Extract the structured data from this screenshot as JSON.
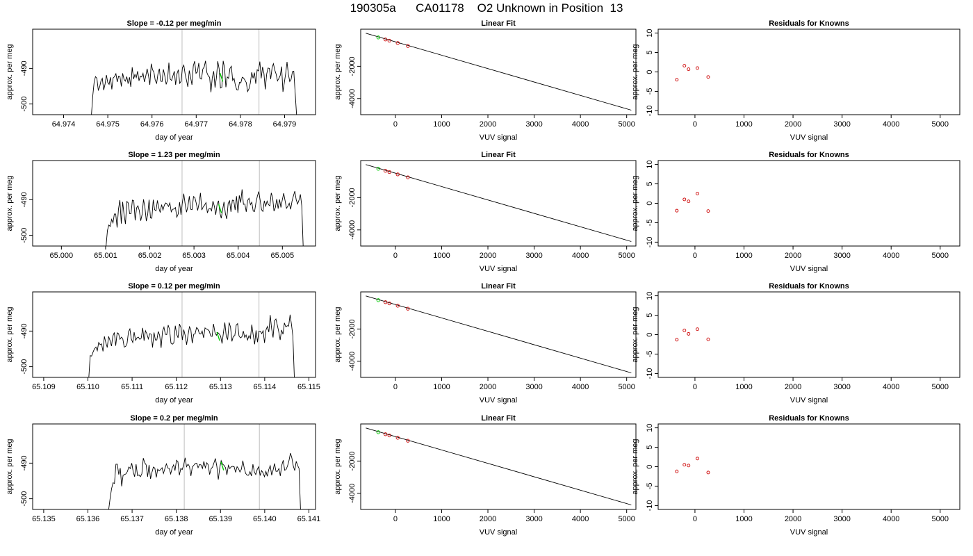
{
  "header": {
    "title": "190305a      CA01178    O2 Unknown in Position  13"
  },
  "colors": {
    "trace": "#000000",
    "highlight": "#00cc00",
    "residual_marker": "#cc0000",
    "vline": "#c8c8c8",
    "frame": "#000000"
  },
  "chart_data": [
    {
      "type": "line",
      "panel": "trace",
      "row": 1,
      "title": "Slope =  -0.12  per meg/min",
      "xlabel": "day of year",
      "ylabel": "approx. per meg",
      "xlim": [
        64.9733,
        64.9797
      ],
      "ylim": [
        -503,
        -479
      ],
      "xticks": [
        "64.974",
        "64.975",
        "64.976",
        "64.977",
        "64.978",
        "64.979"
      ],
      "yticks": [
        "-500",
        "-490"
      ],
      "vlines": [
        64.97668,
        64.97842
      ],
      "highlight": {
        "x": 64.97757,
        "y": -492.5
      },
      "x_start": 64.97463,
      "x_end": 64.97927,
      "y": [
        -503,
        -497.7,
        -493.8,
        -492.3,
        -492.8,
        -496.1,
        -495.3,
        -493.5,
        -492.8,
        -496.1,
        -494.5,
        -491.9,
        -493.9,
        -494.5,
        -492.5,
        -495.9,
        -492.7,
        -492.3,
        -491.5,
        -493.8,
        -492.2,
        -492.3,
        -495.1,
        -491.4,
        -493.1,
        -493.6,
        -492.3,
        -494.3,
        -492.5,
        -495.2,
        -489.7,
        -493.0,
        -491.7,
        -492.6,
        -490.8,
        -493.5,
        -492.2,
        -492.4,
        -491.4,
        -493.8,
        -492.2,
        -490.1,
        -492.1,
        -494.6,
        -488.7,
        -490.4,
        -491.1,
        -493.4,
        -494.2,
        -491.5,
        -490.1,
        -493.6,
        -493.7,
        -490.3,
        -492.1,
        -494.5,
        -493.3,
        -488.4,
        -493.0,
        -493.4,
        -492.1,
        -490.8,
        -494.6,
        -491.5,
        -490.4,
        -494.2,
        -493.6,
        -489.8,
        -489.1,
        -491.6,
        -493.4,
        -495.2,
        -490.6,
        -492.5,
        -494.6,
        -489.3,
        -488.0,
        -491.4,
        -491.0,
        -488.5,
        -492.8,
        -493.0,
        -490.2,
        -489.6,
        -487.9,
        -491.2,
        -492.1,
        -492.5,
        -496.7,
        -492.5,
        -490.8,
        -495.4,
        -492.6,
        -488.0,
        -490.1,
        -495.5,
        -495.3,
        -487.9,
        -489.8,
        -495.3,
        -492.4,
        -492.8,
        -490.0,
        -489.4,
        -493.4,
        -492.8,
        -494.8,
        -496.0,
        -496.1,
        -493.9,
        -494.1,
        -492.5,
        -492.7,
        -493.3,
        -494.0,
        -496.5,
        -495.7,
        -494.1,
        -491.1,
        -492.8,
        -491.2,
        -494.3,
        -490.4,
        -490.7,
        -488.1,
        -492.8,
        -489.6,
        -491.5,
        -495.9,
        -491.6,
        -489.9,
        -490.0,
        -493.0,
        -489.8,
        -488.7,
        -490.5,
        -491.6,
        -493.5,
        -492.8,
        -492.0,
        -489.5,
        -496.6,
        -494.0,
        -491.5,
        -488.2,
        -491.6,
        -493.7,
        -493.1,
        -490.9,
        -490.8,
        -496.9,
        -503
      ]
    },
    {
      "type": "line",
      "panel": "fit",
      "row": 1,
      "title": "Linear Fit",
      "xlabel": "VUV signal",
      "ylabel": "approx. per meg",
      "xlim": [
        -750,
        5200
      ],
      "ylim": [
        -5000,
        300
      ],
      "xticks": [
        "0",
        "1000",
        "2000",
        "3000",
        "4000",
        "5000"
      ],
      "yticks": [
        "-4000",
        "-2000"
      ],
      "line": [
        [
          -640,
          50
        ],
        [
          5100,
          -4720
        ]
      ],
      "points": [
        [
          -370,
          -210,
          "#00cc00"
        ],
        [
          -215,
          -335,
          "#cc0000"
        ],
        [
          -130,
          -410,
          "#cc0000"
        ],
        [
          50,
          -555,
          "#cc0000"
        ],
        [
          270,
          -740,
          "#cc0000"
        ]
      ]
    },
    {
      "type": "scatter",
      "panel": "residuals",
      "row": 1,
      "title": "Residuals for Knowns",
      "xlabel": "VUV signal",
      "ylabel": "approx. per meg",
      "xlim": [
        -750,
        5400
      ],
      "ylim": [
        -11,
        11
      ],
      "xticks": [
        "0",
        "1000",
        "2000",
        "3000",
        "4000",
        "5000"
      ],
      "yticks": [
        "-10",
        "-5",
        "0",
        "5",
        "10"
      ],
      "points": [
        [
          -370,
          -2.0
        ],
        [
          -215,
          1.6
        ],
        [
          -130,
          0.7
        ],
        [
          50,
          1.0
        ],
        [
          270,
          -1.3
        ]
      ]
    },
    {
      "type": "line",
      "panel": "trace",
      "row": 2,
      "title": "Slope =  1.23  per meg/min",
      "xlabel": "day of year",
      "ylabel": "approx. per meg",
      "xlim": [
        64.99935,
        65.00575
      ],
      "ylim": [
        -503,
        -479
      ],
      "xticks": [
        "65.000",
        "65.001",
        "65.002",
        "65.003",
        "65.004",
        "65.005"
      ],
      "yticks": [
        "-500",
        "-490"
      ],
      "vlines": [
        65.00273,
        65.00448
      ],
      "highlight": {
        "x": 65.00359,
        "y": -492.5
      },
      "x_start": 65.00101,
      "x_end": 65.00547,
      "y": [
        -503,
        -498.6,
        -497.1,
        -497.5,
        -495.5,
        -496.5,
        -494.0,
        -494.0,
        -497.8,
        -492.6,
        -490.1,
        -496.7,
        -490.6,
        -494.2,
        -496.8,
        -490.5,
        -490.9,
        -493.9,
        -493.9,
        -490.1,
        -490.3,
        -495.8,
        -492.3,
        -491.7,
        -493.1,
        -495.9,
        -494.1,
        -489.9,
        -492.1,
        -496.0,
        -494.2,
        -490.0,
        -495.1,
        -495.2,
        -490.0,
        -492.8,
        -493.1,
        -490.2,
        -492.3,
        -493.6,
        -491.4,
        -492.9,
        -491.5,
        -490.9,
        -491.2,
        -491.9,
        -490.9,
        -493.4,
        -492.7,
        -492.6,
        -492.2,
        -494.9,
        -494.0,
        -490.7,
        -494.2,
        -490.8,
        -488.3,
        -491.2,
        -493.5,
        -491.8,
        -489.0,
        -492.7,
        -492.8,
        -489.1,
        -489.4,
        -491.0,
        -493.0,
        -491.1,
        -488.1,
        -492.9,
        -492.0,
        -491.5,
        -490.8,
        -493.7,
        -492.6,
        -492.4,
        -493.1,
        -490.4,
        -491.8,
        -494.2,
        -491.3,
        -490.3,
        -493.7,
        -495.2,
        -492.8,
        -490.6,
        -493.9,
        -495.4,
        -491.0,
        -490.3,
        -493.4,
        -490.1,
        -490.2,
        -492.9,
        -489.0,
        -493.7,
        -488.8,
        -490.8,
        -487.1,
        -491.3,
        -491.2,
        -493.4,
        -490.2,
        -489.6,
        -491.4,
        -490.7,
        -493.2,
        -493.3,
        -490.8,
        -489.0,
        -487.7,
        -490.1,
        -492.8,
        -493.3,
        -490.3,
        -491.8,
        -490.4,
        -491.4,
        -491.7,
        -488.1,
        -489.4,
        -493.2,
        -492.2,
        -489.8,
        -492.5,
        -489.9,
        -492.2,
        -490.0,
        -488.2,
        -490.3,
        -492.4,
        -491.8,
        -491.0,
        -492.7,
        -490.4,
        -488.9,
        -487.6,
        -490.0,
        -491.2,
        -490.1,
        -488.5,
        -491.7,
        -503
      ]
    },
    {
      "type": "line",
      "panel": "fit",
      "row": 2,
      "title": "Linear Fit",
      "xlabel": "VUV signal",
      "ylabel": "approx. per meg",
      "xlim": [
        -750,
        5200
      ],
      "ylim": [
        -5000,
        300
      ],
      "xticks": [
        "0",
        "1000",
        "2000",
        "3000",
        "4000",
        "5000"
      ],
      "yticks": [
        "-4000",
        "-2000"
      ],
      "line": [
        [
          -640,
          50
        ],
        [
          5100,
          -4720
        ]
      ],
      "points": [
        [
          -370,
          -210,
          "#00cc00"
        ],
        [
          -215,
          -335,
          "#cc0000"
        ],
        [
          -130,
          -410,
          "#cc0000"
        ],
        [
          50,
          -555,
          "#cc0000"
        ],
        [
          270,
          -740,
          "#cc0000"
        ]
      ]
    },
    {
      "type": "scatter",
      "panel": "residuals",
      "row": 2,
      "title": "Residuals for Knowns",
      "xlabel": "VUV signal",
      "ylabel": "approx. per meg",
      "xlim": [
        -750,
        5400
      ],
      "ylim": [
        -11,
        11
      ],
      "xticks": [
        "0",
        "1000",
        "2000",
        "3000",
        "4000",
        "5000"
      ],
      "yticks": [
        "-10",
        "-5",
        "0",
        "5",
        "10"
      ],
      "points": [
        [
          -370,
          -1.9
        ],
        [
          -215,
          1.0
        ],
        [
          -130,
          0.5
        ],
        [
          50,
          2.5
        ],
        [
          270,
          -2.0
        ]
      ]
    },
    {
      "type": "line",
      "panel": "trace",
      "row": 3,
      "title": "Slope =  0.12  per meg/min",
      "xlabel": "day of year",
      "ylabel": "approx. per meg",
      "xlim": [
        65.10875,
        65.11515
      ],
      "ylim": [
        -503,
        -479
      ],
      "xticks": [
        "65.109",
        "65.110",
        "65.111",
        "65.112",
        "65.113",
        "65.114",
        "65.115"
      ],
      "yticks": [
        "-500",
        "-490"
      ],
      "vlines": [
        65.11213,
        65.11387
      ],
      "highlight": {
        "x": 65.11295,
        "y": -491.5
      },
      "x_start": 65.11002,
      "x_end": 65.11467,
      "y": [
        -503,
        -496.9,
        -497.0,
        -495.9,
        -495.0,
        -494.5,
        -495.5,
        -493.2,
        -493.8,
        -493.6,
        -495.7,
        -491.5,
        -493.2,
        -494.6,
        -491.5,
        -492.7,
        -494.2,
        -491.4,
        -490.4,
        -494.1,
        -490.5,
        -490.7,
        -492.3,
        -491.7,
        -492.2,
        -494.5,
        -494.3,
        -493.5,
        -490.2,
        -489.4,
        -492.2,
        -493.2,
        -490.3,
        -492.6,
        -491.9,
        -491.7,
        -492.3,
        -492.0,
        -489.1,
        -492.7,
        -489.9,
        -490.8,
        -492.2,
        -490.7,
        -490.9,
        -494.6,
        -490.4,
        -492.5,
        -492.5,
        -490.1,
        -491.2,
        -494.7,
        -490.1,
        -488.9,
        -490.9,
        -491.0,
        -488.3,
        -489.6,
        -493.4,
        -493.7,
        -493.3,
        -488.5,
        -490.9,
        -491.9,
        -488.0,
        -489.0,
        -492.5,
        -489.6,
        -491.2,
        -493.8,
        -491.2,
        -488.8,
        -489.6,
        -493.4,
        -490.9,
        -490.8,
        -489.0,
        -489.4,
        -490.7,
        -490.8,
        -490.0,
        -491.9,
        -489.1,
        -489.4,
        -489.6,
        -490.0,
        -491.4,
        -491.5,
        -488.0,
        -490.4,
        -491.2,
        -490.4,
        -490.8,
        -491.4,
        -493.5,
        -490.4,
        -487.6,
        -491.6,
        -492.3,
        -487.6,
        -488.9,
        -492.9,
        -491.4,
        -491.3,
        -488.3,
        -487.9,
        -491.4,
        -491.9,
        -491.6,
        -490.0,
        -491.8,
        -491.1,
        -492.5,
        -491.3,
        -492.1,
        -488.2,
        -491.1,
        -493.7,
        -489.8,
        -493.1,
        -490.0,
        -490.0,
        -490.7,
        -489.9,
        -493.3,
        -489.7,
        -488.7,
        -490.3,
        -485.5,
        -489.3,
        -491.8,
        -487.1,
        -486.6,
        -488.3,
        -490.1,
        -492.5,
        -489.7,
        -490.9,
        -487.7,
        -488.8,
        -488.5,
        -488.6,
        -485.4,
        -488.2,
        -491.4,
        -503
      ]
    },
    {
      "type": "line",
      "panel": "fit",
      "row": 3,
      "title": "Linear Fit",
      "xlabel": "VUV signal",
      "ylabel": "approx. per meg",
      "xlim": [
        -750,
        5200
      ],
      "ylim": [
        -5000,
        300
      ],
      "xticks": [
        "0",
        "1000",
        "2000",
        "3000",
        "4000",
        "5000"
      ],
      "yticks": [
        "-4000",
        "-2000"
      ],
      "line": [
        [
          -640,
          50
        ],
        [
          5100,
          -4720
        ]
      ],
      "points": [
        [
          -370,
          -210,
          "#00cc00"
        ],
        [
          -215,
          -335,
          "#cc0000"
        ],
        [
          -130,
          -410,
          "#cc0000"
        ],
        [
          50,
          -555,
          "#cc0000"
        ],
        [
          270,
          -740,
          "#cc0000"
        ]
      ]
    },
    {
      "type": "scatter",
      "panel": "residuals",
      "row": 3,
      "title": "Residuals for Knowns",
      "xlabel": "VUV signal",
      "ylabel": "approx. per meg",
      "xlim": [
        -750,
        5400
      ],
      "ylim": [
        -11,
        11
      ],
      "xticks": [
        "0",
        "1000",
        "2000",
        "3000",
        "4000",
        "5000"
      ],
      "yticks": [
        "-10",
        "-5",
        "0",
        "5",
        "10"
      ],
      "points": [
        [
          -370,
          -1.3
        ],
        [
          -215,
          1.1
        ],
        [
          -130,
          0.2
        ],
        [
          50,
          1.4
        ],
        [
          270,
          -1.2
        ]
      ]
    },
    {
      "type": "line",
      "panel": "trace",
      "row": 4,
      "title": "Slope =  0.2  per meg/min",
      "xlabel": "day of year",
      "ylabel": "approx. per meg",
      "xlim": [
        65.13475,
        65.14115
      ],
      "ylim": [
        -503,
        -479
      ],
      "xticks": [
        "65.135",
        "65.136",
        "65.137",
        "65.138",
        "65.139",
        "65.140",
        "65.141"
      ],
      "yticks": [
        "-500",
        "-490"
      ],
      "vlines": [
        65.13818,
        65.13988
      ],
      "highlight": {
        "x": 65.13904,
        "y": -490.8
      },
      "x_start": 65.13647,
      "x_end": 65.14081,
      "y": [
        -503,
        -499.8,
        -497.2,
        -495.5,
        -495.7,
        -490.3,
        -490.3,
        -493.2,
        -491.4,
        -496.5,
        -493.4,
        -493.2,
        -493.0,
        -492.3,
        -491.1,
        -491.5,
        -490.0,
        -492.5,
        -493.8,
        -490.3,
        -493.5,
        -493.3,
        -493.8,
        -493.0,
        -488.6,
        -489.9,
        -490.5,
        -493.8,
        -490.5,
        -494.4,
        -492.6,
        -491.1,
        -491.4,
        -494.0,
        -491.7,
        -492.2,
        -491.8,
        -491.3,
        -492.9,
        -491.5,
        -490.2,
        -491.4,
        -491.5,
        -493.0,
        -491.4,
        -490.5,
        -492.1,
        -489.2,
        -489.6,
        -493.4,
        -491.5,
        -491.8,
        -490.5,
        -488.5,
        -491.0,
        -490.3,
        -490.9,
        -493.6,
        -491.1,
        -490.6,
        -490.1,
        -490.0,
        -491.3,
        -490.4,
        -490.5,
        -491.5,
        -489.5,
        -491.3,
        -489.9,
        -490.5,
        -493.2,
        -491.6,
        -491.1,
        -489.9,
        -488.7,
        -490.9,
        -494.6,
        -491.3,
        -489.3,
        -490.3,
        -490.6,
        -491.3,
        -493.3,
        -490.6,
        -491.5,
        -491.0,
        -490.9,
        -491.0,
        -492.6,
        -491.0,
        -491.5,
        -492.5,
        -491.7,
        -489.3,
        -491.4,
        -492.9,
        -493.4,
        -493.4,
        -492.4,
        -493.6,
        -490.3,
        -492.5,
        -493.2,
        -491.8,
        -491.0,
        -493.5,
        -492.1,
        -492.7,
        -493.8,
        -492.3,
        -493.7,
        -491.8,
        -490.7,
        -493.4,
        -491.9,
        -490.1,
        -492.3,
        -492.3,
        -491.5,
        -493.6,
        -490.6,
        -489.2,
        -492.0,
        -491.8,
        -490.8,
        -489.3,
        -487.2,
        -488.5,
        -490.8,
        -492.1,
        -489.5,
        -490.6,
        -491.5,
        -503
      ]
    },
    {
      "type": "line",
      "panel": "fit",
      "row": 4,
      "title": "Linear Fit",
      "xlabel": "VUV signal",
      "ylabel": "approx. per meg",
      "xlim": [
        -750,
        5200
      ],
      "ylim": [
        -5000,
        300
      ],
      "xticks": [
        "0",
        "1000",
        "2000",
        "3000",
        "4000",
        "5000"
      ],
      "yticks": [
        "-4000",
        "-2000"
      ],
      "line": [
        [
          -640,
          50
        ],
        [
          5100,
          -4720
        ]
      ],
      "points": [
        [
          -370,
          -210,
          "#00cc00"
        ],
        [
          -215,
          -335,
          "#cc0000"
        ],
        [
          -130,
          -410,
          "#cc0000"
        ],
        [
          50,
          -555,
          "#cc0000"
        ],
        [
          270,
          -740,
          "#cc0000"
        ]
      ]
    },
    {
      "type": "scatter",
      "panel": "residuals",
      "row": 4,
      "title": "Residuals for Knowns",
      "xlabel": "VUV signal",
      "ylabel": "approx. per meg",
      "xlim": [
        -750,
        5400
      ],
      "ylim": [
        -11,
        11
      ],
      "xticks": [
        "0",
        "1000",
        "2000",
        "3000",
        "4000",
        "5000"
      ],
      "yticks": [
        "-10",
        "-5",
        "0",
        "5",
        "10"
      ],
      "points": [
        [
          -370,
          -1.2
        ],
        [
          -215,
          0.5
        ],
        [
          -130,
          0.3
        ],
        [
          50,
          2.1
        ],
        [
          270,
          -1.5
        ]
      ]
    }
  ]
}
